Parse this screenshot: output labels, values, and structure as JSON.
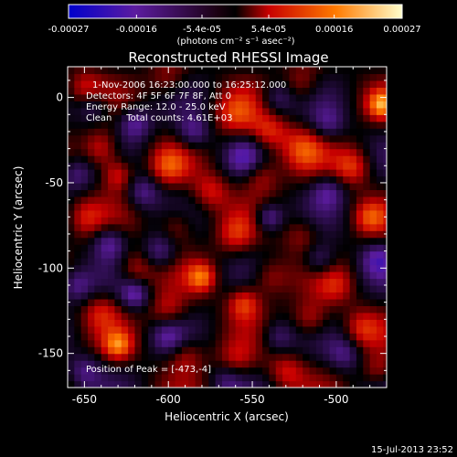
{
  "colorbar": {
    "tick_labels": [
      "-0.00027",
      "-0.00016",
      "-5.4e-05",
      "5.4e-05",
      "0.00016",
      "0.00027"
    ],
    "tick_values": [
      -0.00027,
      -0.00016,
      -5.4e-05,
      5.4e-05,
      0.00016,
      0.00027
    ],
    "range": [
      -0.00027,
      0.00027
    ],
    "unit_label": "(photons cm⁻² s⁻¹ asec⁻²)"
  },
  "info": {
    "time_range": "1-Nov-2006 16:23:00.000 to 16:25:12.000",
    "detectors": "Detectors: 4F 5F 6F 7F 8F, Att 0",
    "energy": "Energy Range: 12.0 - 25.0 keV",
    "method": "Clean     Total counts: 4.61E+03",
    "peak": "Position of Peak = [-473,-4]"
  },
  "footer": {
    "timestamp": "15-Jul-2013 23:52"
  },
  "chart_data": {
    "type": "heatmap",
    "title": "Reconstructed RHESSI Image",
    "xlabel": "Heliocentric X (arcsec)",
    "ylabel": "Heliocentric Y (arcsec)",
    "xlim": [
      -660,
      -470
    ],
    "ylim": [
      -170,
      18
    ],
    "x_ticks": [
      -650,
      -600,
      -550,
      -500
    ],
    "y_ticks": [
      -150,
      -100,
      -50,
      0
    ],
    "x_tick_labels": [
      "-650",
      "-600",
      "-550",
      "-500"
    ],
    "y_tick_labels": [
      "-150",
      "-100",
      "-50",
      "0"
    ],
    "peak_position": [
      -473,
      -4
    ],
    "colormap": [
      "#0000cc",
      "#5c1ca0",
      "#000000",
      "#c80000",
      "#ff7a00",
      "#ffff99"
    ],
    "blobs": [
      {
        "x": -473,
        "y": -4,
        "v": 1.0,
        "r": 6
      },
      {
        "x": -560,
        "y": -10,
        "v": 0.7,
        "r": 9
      },
      {
        "x": -540,
        "y": -20,
        "v": 0.75,
        "r": 8
      },
      {
        "x": -640,
        "y": -30,
        "v": 0.85,
        "r": 8
      },
      {
        "x": -520,
        "y": -30,
        "v": 0.7,
        "r": 9
      },
      {
        "x": -490,
        "y": -40,
        "v": 0.8,
        "r": 8
      },
      {
        "x": -630,
        "y": -45,
        "v": 0.8,
        "r": 7
      },
      {
        "x": -600,
        "y": -40,
        "v": 0.7,
        "r": 8
      },
      {
        "x": -575,
        "y": -55,
        "v": 0.65,
        "r": 8
      },
      {
        "x": -545,
        "y": -45,
        "v": 0.6,
        "r": 8
      },
      {
        "x": -480,
        "y": -70,
        "v": 0.7,
        "r": 7
      },
      {
        "x": -650,
        "y": -70,
        "v": 0.55,
        "r": 8
      },
      {
        "x": -595,
        "y": -75,
        "v": 0.6,
        "r": 8
      },
      {
        "x": -560,
        "y": -80,
        "v": 0.6,
        "r": 8
      },
      {
        "x": -520,
        "y": -80,
        "v": 0.5,
        "r": 8
      },
      {
        "x": -620,
        "y": -100,
        "v": 0.65,
        "r": 8
      },
      {
        "x": -580,
        "y": -105,
        "v": 0.9,
        "r": 6
      },
      {
        "x": -540,
        "y": -105,
        "v": 0.6,
        "r": 8
      },
      {
        "x": -500,
        "y": -110,
        "v": 0.5,
        "r": 8
      },
      {
        "x": -640,
        "y": -125,
        "v": 0.55,
        "r": 8
      },
      {
        "x": -600,
        "y": -125,
        "v": 0.6,
        "r": 8
      },
      {
        "x": -555,
        "y": -120,
        "v": 0.85,
        "r": 7
      },
      {
        "x": -515,
        "y": -130,
        "v": 0.7,
        "r": 8
      },
      {
        "x": -485,
        "y": -135,
        "v": 0.6,
        "r": 8
      },
      {
        "x": -630,
        "y": -145,
        "v": 0.9,
        "r": 6
      },
      {
        "x": -590,
        "y": -150,
        "v": 0.6,
        "r": 8
      },
      {
        "x": -560,
        "y": -155,
        "v": 0.55,
        "r": 8
      },
      {
        "x": -530,
        "y": -160,
        "v": 0.6,
        "r": 8
      },
      {
        "x": -475,
        "y": -160,
        "v": 0.5,
        "r": 7
      },
      {
        "x": -650,
        "y": 5,
        "v": 0.6,
        "r": 8
      },
      {
        "x": -600,
        "y": 10,
        "v": 0.5,
        "r": 8
      },
      {
        "x": -520,
        "y": 8,
        "v": 0.55,
        "r": 8
      },
      {
        "x": -645,
        "y": -5,
        "v": -0.7,
        "r": 7
      },
      {
        "x": -620,
        "y": -15,
        "v": -0.8,
        "r": 7
      },
      {
        "x": -585,
        "y": -20,
        "v": -0.75,
        "r": 7
      },
      {
        "x": -535,
        "y": 0,
        "v": -0.6,
        "r": 7
      },
      {
        "x": -505,
        "y": -15,
        "v": -0.6,
        "r": 7
      },
      {
        "x": -655,
        "y": -45,
        "v": -0.6,
        "r": 7
      },
      {
        "x": -615,
        "y": -55,
        "v": -0.7,
        "r": 7
      },
      {
        "x": -555,
        "y": -35,
        "v": -0.7,
        "r": 7
      },
      {
        "x": -505,
        "y": -55,
        "v": -0.65,
        "r": 7
      },
      {
        "x": -635,
        "y": -85,
        "v": -0.8,
        "r": 7
      },
      {
        "x": -605,
        "y": -90,
        "v": -0.7,
        "r": 7
      },
      {
        "x": -540,
        "y": -70,
        "v": -0.9,
        "r": 6
      },
      {
        "x": -510,
        "y": -95,
        "v": -0.7,
        "r": 7
      },
      {
        "x": -475,
        "y": -95,
        "v": -0.75,
        "r": 7
      },
      {
        "x": -655,
        "y": -110,
        "v": -0.7,
        "r": 7
      },
      {
        "x": -600,
        "y": -140,
        "v": -0.65,
        "r": 7
      },
      {
        "x": -620,
        "y": -115,
        "v": -0.85,
        "r": 6
      },
      {
        "x": -535,
        "y": -140,
        "v": -0.6,
        "r": 7
      },
      {
        "x": -495,
        "y": -150,
        "v": -0.6,
        "r": 7
      },
      {
        "x": -650,
        "y": -160,
        "v": -0.6,
        "r": 7
      },
      {
        "x": -565,
        "y": -165,
        "v": -0.55,
        "r": 7
      }
    ]
  }
}
